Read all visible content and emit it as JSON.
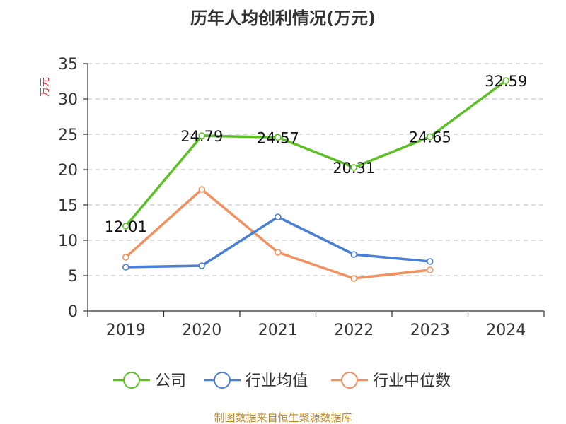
{
  "chart_data": {
    "type": "line",
    "title": "历年人均创利情况(万元)",
    "ylabel": "万元",
    "categories": [
      "2019",
      "2020",
      "2021",
      "2022",
      "2023",
      "2024"
    ],
    "ylim": [
      0,
      35
    ],
    "yticks": [
      0,
      5,
      10,
      15,
      20,
      25,
      30,
      35
    ],
    "grid": true,
    "legend_position": "bottom",
    "series": [
      {
        "name": "公司",
        "color": "#5cbf26",
        "values": [
          12.01,
          24.79,
          24.57,
          20.31,
          24.65,
          32.59
        ],
        "labels": [
          "12.01",
          "24.79",
          "24.57",
          "20.31",
          "24.65",
          "32.59"
        ]
      },
      {
        "name": "行业均值",
        "color": "#4a7fd6",
        "values": [
          6.2,
          6.4,
          13.3,
          8.0,
          7.0,
          null
        ]
      },
      {
        "name": "行业中位数",
        "color": "#f39060",
        "values": [
          7.6,
          17.2,
          8.3,
          4.6,
          5.8,
          null
        ]
      }
    ]
  },
  "source": "制图数据来自恒生聚源数据库"
}
